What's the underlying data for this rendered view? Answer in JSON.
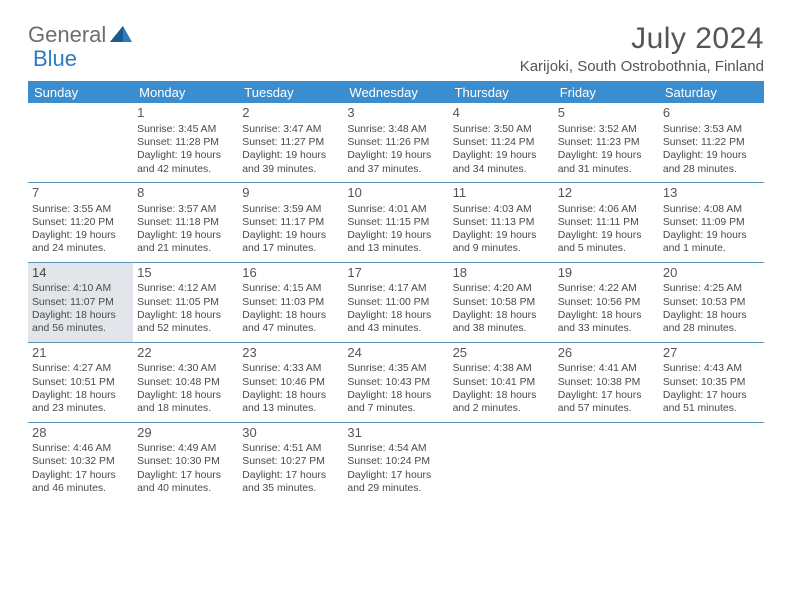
{
  "logo": {
    "part1": "General",
    "part2": "Blue"
  },
  "title": "July 2024",
  "location": "Karijoki, South Ostrobothnia, Finland",
  "headers": [
    "Sunday",
    "Monday",
    "Tuesday",
    "Wednesday",
    "Thursday",
    "Friday",
    "Saturday"
  ],
  "colors": {
    "header_bg": "#3a8dcf",
    "header_text": "#ffffff",
    "rule": "#5a93b8",
    "today_bg": "#e2e6ea",
    "logo_gray": "#6e6e6e",
    "logo_blue": "#2f7ac0",
    "text": "#4a4a4a"
  },
  "today": 14,
  "start_weekday": 1,
  "days": [
    {
      "n": 1,
      "sr": "3:45 AM",
      "ss": "11:28 PM",
      "dl": "19 hours and 42 minutes."
    },
    {
      "n": 2,
      "sr": "3:47 AM",
      "ss": "11:27 PM",
      "dl": "19 hours and 39 minutes."
    },
    {
      "n": 3,
      "sr": "3:48 AM",
      "ss": "11:26 PM",
      "dl": "19 hours and 37 minutes."
    },
    {
      "n": 4,
      "sr": "3:50 AM",
      "ss": "11:24 PM",
      "dl": "19 hours and 34 minutes."
    },
    {
      "n": 5,
      "sr": "3:52 AM",
      "ss": "11:23 PM",
      "dl": "19 hours and 31 minutes."
    },
    {
      "n": 6,
      "sr": "3:53 AM",
      "ss": "11:22 PM",
      "dl": "19 hours and 28 minutes."
    },
    {
      "n": 7,
      "sr": "3:55 AM",
      "ss": "11:20 PM",
      "dl": "19 hours and 24 minutes."
    },
    {
      "n": 8,
      "sr": "3:57 AM",
      "ss": "11:18 PM",
      "dl": "19 hours and 21 minutes."
    },
    {
      "n": 9,
      "sr": "3:59 AM",
      "ss": "11:17 PM",
      "dl": "19 hours and 17 minutes."
    },
    {
      "n": 10,
      "sr": "4:01 AM",
      "ss": "11:15 PM",
      "dl": "19 hours and 13 minutes."
    },
    {
      "n": 11,
      "sr": "4:03 AM",
      "ss": "11:13 PM",
      "dl": "19 hours and 9 minutes."
    },
    {
      "n": 12,
      "sr": "4:06 AM",
      "ss": "11:11 PM",
      "dl": "19 hours and 5 minutes."
    },
    {
      "n": 13,
      "sr": "4:08 AM",
      "ss": "11:09 PM",
      "dl": "19 hours and 1 minute."
    },
    {
      "n": 14,
      "sr": "4:10 AM",
      "ss": "11:07 PM",
      "dl": "18 hours and 56 minutes."
    },
    {
      "n": 15,
      "sr": "4:12 AM",
      "ss": "11:05 PM",
      "dl": "18 hours and 52 minutes."
    },
    {
      "n": 16,
      "sr": "4:15 AM",
      "ss": "11:03 PM",
      "dl": "18 hours and 47 minutes."
    },
    {
      "n": 17,
      "sr": "4:17 AM",
      "ss": "11:00 PM",
      "dl": "18 hours and 43 minutes."
    },
    {
      "n": 18,
      "sr": "4:20 AM",
      "ss": "10:58 PM",
      "dl": "18 hours and 38 minutes."
    },
    {
      "n": 19,
      "sr": "4:22 AM",
      "ss": "10:56 PM",
      "dl": "18 hours and 33 minutes."
    },
    {
      "n": 20,
      "sr": "4:25 AM",
      "ss": "10:53 PM",
      "dl": "18 hours and 28 minutes."
    },
    {
      "n": 21,
      "sr": "4:27 AM",
      "ss": "10:51 PM",
      "dl": "18 hours and 23 minutes."
    },
    {
      "n": 22,
      "sr": "4:30 AM",
      "ss": "10:48 PM",
      "dl": "18 hours and 18 minutes."
    },
    {
      "n": 23,
      "sr": "4:33 AM",
      "ss": "10:46 PM",
      "dl": "18 hours and 13 minutes."
    },
    {
      "n": 24,
      "sr": "4:35 AM",
      "ss": "10:43 PM",
      "dl": "18 hours and 7 minutes."
    },
    {
      "n": 25,
      "sr": "4:38 AM",
      "ss": "10:41 PM",
      "dl": "18 hours and 2 minutes."
    },
    {
      "n": 26,
      "sr": "4:41 AM",
      "ss": "10:38 PM",
      "dl": "17 hours and 57 minutes."
    },
    {
      "n": 27,
      "sr": "4:43 AM",
      "ss": "10:35 PM",
      "dl": "17 hours and 51 minutes."
    },
    {
      "n": 28,
      "sr": "4:46 AM",
      "ss": "10:32 PM",
      "dl": "17 hours and 46 minutes."
    },
    {
      "n": 29,
      "sr": "4:49 AM",
      "ss": "10:30 PM",
      "dl": "17 hours and 40 minutes."
    },
    {
      "n": 30,
      "sr": "4:51 AM",
      "ss": "10:27 PM",
      "dl": "17 hours and 35 minutes."
    },
    {
      "n": 31,
      "sr": "4:54 AM",
      "ss": "10:24 PM",
      "dl": "17 hours and 29 minutes."
    }
  ],
  "labels": {
    "sunrise": "Sunrise:",
    "sunset": "Sunset:",
    "daylight": "Daylight:"
  }
}
